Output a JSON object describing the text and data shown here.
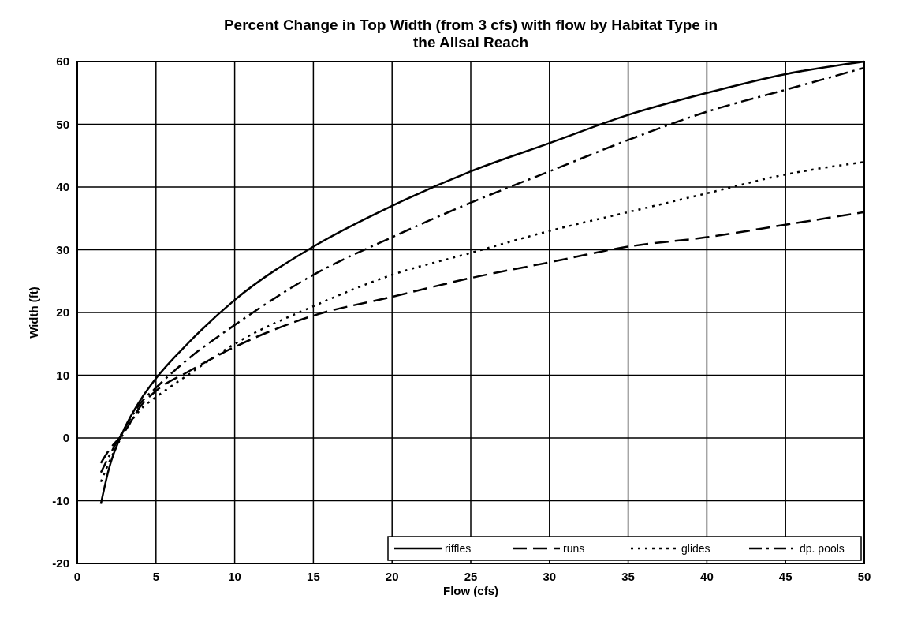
{
  "chart_data": {
    "type": "line",
    "title": "Percent Change in Top Width (from 3 cfs) with flow by Habitat Type in the Alisal Reach",
    "xlabel": "Flow (cfs)",
    "ylabel": "Width (ft)",
    "x": [
      1.5,
      2,
      3,
      4,
      5,
      7,
      10,
      15,
      20,
      25,
      30,
      35,
      40,
      45,
      50
    ],
    "series": [
      {
        "name": "riffles",
        "color": "#000000",
        "line_style": "solid",
        "values": [
          -10.5,
          -5,
          1.5,
          6,
          9.5,
          15,
          22,
          30.5,
          37,
          42.5,
          47,
          51.5,
          55,
          58,
          60
        ]
      },
      {
        "name": "runs",
        "color": "#000000",
        "line_style": "dashed",
        "values": [
          -4,
          -2,
          1,
          5,
          7.5,
          10.5,
          14.5,
          19.5,
          22.5,
          25.5,
          28,
          30.5,
          32,
          34,
          36
        ]
      },
      {
        "name": "glides",
        "color": "#000000",
        "line_style": "dotted",
        "values": [
          -7,
          -4,
          1,
          4.5,
          6.5,
          10,
          15,
          21,
          26,
          29.5,
          33,
          36,
          39,
          42,
          44
        ]
      },
      {
        "name": "dp. pools",
        "color": "#000000",
        "line_style": "dashdot",
        "values": [
          -5.5,
          -3,
          1.5,
          5.5,
          8,
          12.5,
          18,
          26,
          32,
          37.5,
          42.5,
          47.5,
          52,
          55.5,
          59
        ]
      }
    ],
    "xlim": [
      0,
      50
    ],
    "xticks": [
      0,
      5,
      10,
      15,
      20,
      25,
      30,
      35,
      40,
      45,
      50
    ],
    "ylim": [
      -20,
      60
    ],
    "yticks": [
      -20,
      -10,
      0,
      10,
      20,
      30,
      40,
      50,
      60
    ],
    "grid": true,
    "legend": "bottom right"
  }
}
